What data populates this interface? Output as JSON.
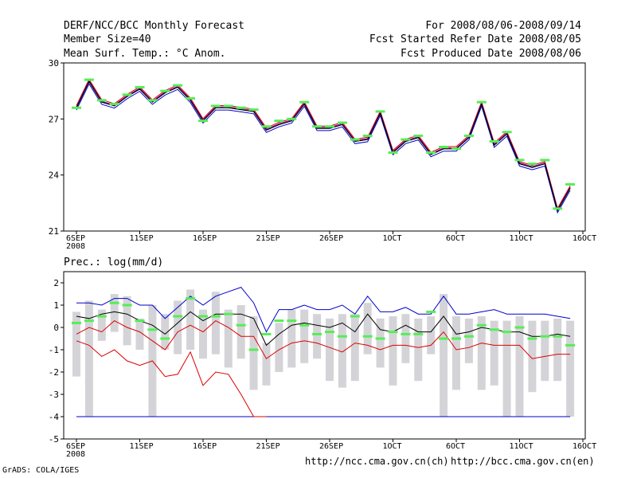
{
  "header": {
    "title": "DERF/NCC/BCC Monthly Forecast",
    "member": "Member Size=40",
    "variable": "Mean Surf. Temp.: °C Anom.",
    "period": "For 2008/08/06-2008/09/14",
    "start_ref": "Fcst Started Refer Date 2008/08/05",
    "produced": "Fcst Produced Date 2008/08/06"
  },
  "footer": {
    "grads": "GrADS: COLA/IGES",
    "url_ncc": "http://ncc.cma.gov.cn(ch)",
    "url_bcc": "http://bcc.cma.gov.cn(en)"
  },
  "colors": {
    "green": "#55ee55",
    "box": "#d4d4d8",
    "blue": "#0000cc",
    "red": "#dd0000",
    "purple": "#9900aa"
  },
  "chart_data": [
    {
      "type": "line",
      "title": "Mean Surf. Temp.: °C Anom.",
      "ylim": [
        21,
        30
      ],
      "yticks": [
        21,
        24,
        27,
        30
      ],
      "xlim": [
        0,
        39
      ],
      "xticks": [
        {
          "pos": 0,
          "label": "6SEP",
          "sub": "2008"
        },
        {
          "pos": 5,
          "label": "11SEP"
        },
        {
          "pos": 10,
          "label": "16SEP"
        },
        {
          "pos": 15,
          "label": "21SEP"
        },
        {
          "pos": 20,
          "label": "26SEP"
        },
        {
          "pos": 25,
          "label": "1OCT"
        },
        {
          "pos": 30,
          "label": "6OCT"
        },
        {
          "pos": 35,
          "label": "11OCT"
        },
        {
          "pos": 40,
          "label": "16OCT"
        }
      ],
      "series": [
        {
          "name": "mean",
          "values": [
            27.6,
            29.0,
            27.9,
            27.7,
            28.2,
            28.6,
            27.9,
            28.4,
            28.7,
            28.0,
            26.9,
            27.6,
            27.6,
            27.5,
            27.4,
            26.4,
            26.7,
            26.9,
            27.8,
            26.5,
            26.5,
            26.7,
            25.8,
            25.9,
            27.3,
            25.2,
            25.8,
            26.0,
            25.1,
            25.4,
            25.4,
            26.0,
            27.8,
            25.6,
            26.2,
            24.6,
            24.4,
            24.6,
            22.1,
            23.3
          ]
        },
        {
          "name": "observed",
          "values": [
            27.6,
            29.1,
            28.0,
            27.8,
            28.3,
            28.7,
            28.0,
            28.5,
            28.8,
            28.1,
            26.9,
            27.7,
            27.7,
            27.6,
            27.5,
            26.6,
            26.9,
            27.0,
            27.9,
            26.6,
            26.6,
            26.8,
            25.9,
            26.1,
            27.4,
            25.2,
            25.9,
            26.1,
            25.2,
            25.5,
            25.4,
            26.1,
            27.9,
            25.8,
            26.3,
            24.8,
            24.6,
            24.8,
            22.2,
            23.5
          ]
        }
      ]
    },
    {
      "type": "box",
      "title": "Prec.: log(mm/d)",
      "ylim": [
        -5,
        2.5
      ],
      "yticks": [
        -5,
        -4,
        -3,
        -2,
        -1,
        0,
        1,
        2
      ],
      "xlim": [
        0,
        39
      ],
      "xticks": [
        {
          "pos": 0,
          "label": "6SEP",
          "sub": "2008"
        },
        {
          "pos": 5,
          "label": "11SEP"
        },
        {
          "pos": 10,
          "label": "16SEP"
        },
        {
          "pos": 15,
          "label": "21SEP"
        },
        {
          "pos": 20,
          "label": "26SEP"
        },
        {
          "pos": 25,
          "label": "1OCT"
        },
        {
          "pos": 30,
          "label": "6OCT"
        },
        {
          "pos": 35,
          "label": "11OCT"
        },
        {
          "pos": 40,
          "label": "16OCT"
        }
      ],
      "box_top": [
        0.7,
        1.2,
        0.8,
        1.5,
        1.4,
        0.4,
        1.0,
        0.6,
        1.2,
        1.7,
        0.8,
        1.6,
        0.8,
        1.0,
        0.5,
        -0.7,
        0.2,
        0.8,
        0.8,
        0.6,
        0.4,
        0.6,
        0.6,
        1.1,
        0.4,
        0.5,
        0.6,
        0.4,
        0.5,
        1.5,
        0.5,
        0.4,
        0.5,
        0.3,
        0.3,
        0.5,
        0.3,
        0.3,
        0.4,
        0.3
      ],
      "box_bottom": [
        -2.2,
        -4.0,
        -0.6,
        -0.2,
        -0.8,
        -1.0,
        -4.0,
        -1.0,
        -1.2,
        -1.0,
        -1.4,
        -1.2,
        -1.8,
        -1.4,
        -2.8,
        -2.6,
        -2.0,
        -1.8,
        -1.6,
        -1.4,
        -2.4,
        -2.7,
        -2.4,
        -1.2,
        -1.8,
        -2.6,
        -1.6,
        -2.4,
        -1.2,
        -4.0,
        -2.8,
        -1.6,
        -2.8,
        -2.6,
        -4.0,
        -4.0,
        -2.9,
        -2.4,
        -2.4,
        -4.0
      ],
      "series": [
        {
          "name": "max",
          "values": [
            1.1,
            1.1,
            1.0,
            1.3,
            1.3,
            1.0,
            1.0,
            0.4,
            0.9,
            1.4,
            1.0,
            1.4,
            1.6,
            1.8,
            1.1,
            -0.2,
            0.8,
            0.8,
            1.0,
            0.8,
            0.8,
            1.0,
            0.6,
            1.4,
            0.7,
            0.7,
            0.9,
            0.6,
            0.6,
            1.4,
            0.6,
            0.6,
            0.7,
            0.8,
            0.6,
            0.6,
            0.6,
            0.6,
            0.5,
            0.4
          ]
        },
        {
          "name": "mean",
          "values": [
            0.5,
            0.4,
            0.6,
            0.7,
            0.6,
            0.3,
            0.1,
            -0.3,
            0.2,
            0.7,
            0.3,
            0.6,
            0.6,
            0.6,
            0.4,
            -0.8,
            -0.3,
            0.1,
            0.2,
            0.1,
            0.0,
            0.2,
            -0.2,
            0.6,
            -0.1,
            -0.2,
            0.1,
            -0.2,
            -0.2,
            0.5,
            -0.3,
            -0.2,
            0.0,
            -0.1,
            -0.2,
            -0.2,
            -0.4,
            -0.4,
            -0.3,
            -0.4
          ]
        },
        {
          "name": "min",
          "values": [
            -0.6,
            -0.8,
            -1.3,
            -1.0,
            -1.5,
            -1.7,
            -1.5,
            -2.2,
            -2.1,
            -1.1,
            -2.6,
            -2.0,
            -2.1,
            -3.0,
            -4.0,
            null,
            null,
            null,
            null,
            null,
            null,
            null,
            null,
            null,
            null,
            null,
            null,
            null,
            null,
            null,
            null,
            null,
            null,
            null,
            null,
            null,
            null,
            null,
            null,
            null
          ]
        },
        {
          "name": "lower",
          "values": [
            -0.3,
            0.0,
            -0.2,
            0.3,
            0.0,
            -0.2,
            -0.6,
            -1.0,
            -0.2,
            0.1,
            -0.2,
            0.3,
            0.0,
            -0.4,
            -0.4,
            -1.4,
            -1.0,
            -0.7,
            -0.6,
            -0.7,
            -0.9,
            -1.1,
            -0.7,
            -0.8,
            -1.0,
            -0.8,
            -0.8,
            -0.9,
            -0.8,
            -0.2,
            -1.0,
            -0.9,
            -0.7,
            -0.8,
            -0.8,
            -0.8,
            -1.4,
            -1.3,
            -1.2,
            -1.2
          ]
        },
        {
          "name": "observed",
          "values": [
            0.2,
            0.3,
            0.5,
            1.1,
            1.0,
            0.3,
            -0.1,
            -0.5,
            0.5,
            1.3,
            0.5,
            0.5,
            0.6,
            0.1,
            -1.0,
            -0.3,
            0.3,
            0.3,
            0.1,
            -0.3,
            -0.2,
            -0.4,
            0.5,
            -0.4,
            -0.5,
            -0.2,
            -0.3,
            -0.3,
            0.7,
            -0.5,
            -0.5,
            -0.4,
            0.1,
            -0.1,
            -0.2,
            0.0,
            -0.5,
            -0.4,
            -0.4,
            -0.8
          ]
        }
      ],
      "floor": -4
    }
  ]
}
